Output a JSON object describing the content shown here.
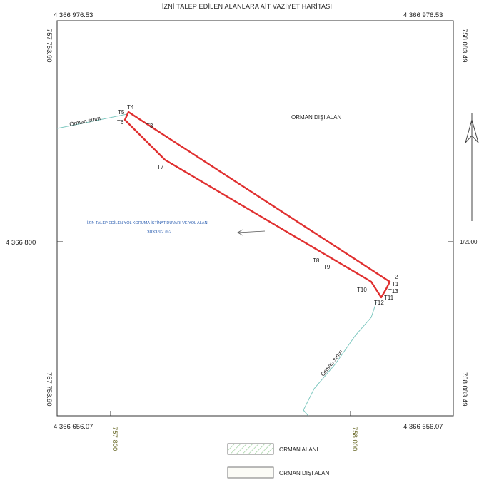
{
  "title": "İZNİ TALEP EDİLEN ALANLARA AİT VAZİYET  HARİTASI",
  "coords": {
    "top_left_y": "4 366 976.53",
    "top_right_y": "4 366 976.53",
    "bottom_left_y": "4 366 656.07",
    "bottom_right_y": "4 366 656.07",
    "mid_left_y": "4 366 800",
    "left_top_x": "757 753.90",
    "left_bottom_x": "757 753.90",
    "right_top_x": "758 083.49",
    "right_bottom_x": "758 083.49",
    "bottom_tick_1": "757 800",
    "bottom_tick_2": "758 000"
  },
  "scale": "1/2000",
  "labels": {
    "outside_forest": "ORMAN DIŞI ALAN",
    "forest_boundary_1": "Orman sınırı",
    "forest_boundary_2": "Orman sınırı",
    "permit_area": "İZİN TALEP EDİLEN YOL KORUMA İSTİNAT DUVARI VE YOL ALANI",
    "permit_area_size": "3033.92 m2"
  },
  "points": [
    "T1",
    "T2",
    "T3",
    "T4",
    "T5",
    "T6",
    "T7",
    "T8",
    "T9",
    "T10",
    "T11",
    "T12",
    "T13"
  ],
  "legend": {
    "forest": "ORMAN ALANI",
    "non_forest": "ORMAN DIŞI ALAN"
  },
  "colors": {
    "parcel": "#e03030",
    "forest_line": "#7ec8c0",
    "frame": "#333333",
    "blue_text": "#2a5db0"
  }
}
